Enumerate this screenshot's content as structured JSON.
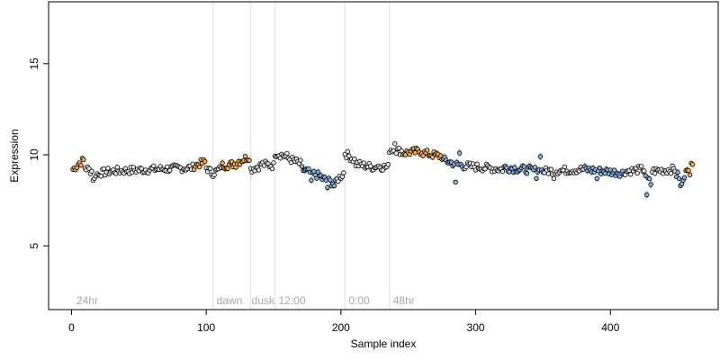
{
  "chart_data": {
    "type": "scatter",
    "xlabel": "Sample index",
    "ylabel": "Expression",
    "xlim": [
      -17,
      480
    ],
    "ylim": [
      1.5,
      18.4
    ],
    "x_ticks": [
      0,
      100,
      200,
      300,
      400
    ],
    "y_ticks": [
      5,
      10,
      15
    ],
    "grid": false,
    "legend": "none",
    "colors": {
      "point_stroke": "#000000",
      "point_fill": "#e8e8e8",
      "orange": "#f5b25a",
      "blue": "#8cb4e2",
      "region_line": "#dedede",
      "region_text": "#a8a8a8"
    },
    "region_lines": [
      105,
      133,
      151,
      203,
      236
    ],
    "region_labels": [
      {
        "text": "24hr",
        "x": 3
      },
      {
        "text": "dawn",
        "x": 107
      },
      {
        "text": "dusk",
        "x": 133
      },
      {
        "text": "12:00",
        "x": 153
      },
      {
        "text": "0:00",
        "x": 205
      },
      {
        "text": "48hr",
        "x": 238
      }
    ],
    "n_points": 461,
    "segments": [
      {
        "start": 1,
        "end": 4,
        "from": 9.2,
        "to": 9.4,
        "color": "orange"
      },
      {
        "start": 5,
        "end": 9,
        "from": 9.5,
        "to": 9.7,
        "color": "orange"
      },
      {
        "start": 10,
        "end": 20,
        "from": 9.3,
        "to": 8.9
      },
      {
        "start": 21,
        "end": 30,
        "from": 9.0,
        "to": 9.1
      },
      {
        "start": 31,
        "end": 60,
        "from": 9.1,
        "to": 9.2
      },
      {
        "start": 61,
        "end": 90,
        "from": 9.2,
        "to": 9.3
      },
      {
        "start": 91,
        "end": 99,
        "from": 9.4,
        "to": 9.6,
        "color": "orange"
      },
      {
        "start": 100,
        "end": 104,
        "from": 9.3,
        "to": 9.0
      },
      {
        "start": 105,
        "end": 110,
        "from": 9.0,
        "to": 9.2
      },
      {
        "start": 111,
        "end": 122,
        "from": 9.4,
        "to": 9.5,
        "color": "orange"
      },
      {
        "start": 123,
        "end": 132,
        "from": 9.6,
        "to": 9.9,
        "color": "orange"
      },
      {
        "start": 133,
        "end": 140,
        "from": 9.2,
        "to": 9.4
      },
      {
        "start": 141,
        "end": 150,
        "from": 9.5,
        "to": 9.4
      },
      {
        "start": 151,
        "end": 160,
        "from": 10.1,
        "to": 9.9
      },
      {
        "start": 161,
        "end": 170,
        "from": 9.8,
        "to": 9.5
      },
      {
        "start": 171,
        "end": 185,
        "from": 9.2,
        "to": 8.8,
        "color": "blue"
      },
      {
        "start": 186,
        "end": 196,
        "from": 8.7,
        "to": 8.4,
        "color": "blue"
      },
      {
        "start": 197,
        "end": 202,
        "from": 8.6,
        "to": 9.0
      },
      {
        "start": 203,
        "end": 210,
        "from": 10.1,
        "to": 9.7
      },
      {
        "start": 211,
        "end": 225,
        "from": 9.5,
        "to": 9.3
      },
      {
        "start": 226,
        "end": 235,
        "from": 9.4,
        "to": 9.3
      },
      {
        "start": 236,
        "end": 245,
        "from": 10.3,
        "to": 10.2
      },
      {
        "start": 246,
        "end": 260,
        "from": 10.1,
        "to": 10.2,
        "color": "orange"
      },
      {
        "start": 261,
        "end": 275,
        "from": 10.1,
        "to": 9.9,
        "color": "orange"
      },
      {
        "start": 276,
        "end": 290,
        "from": 9.7,
        "to": 9.4,
        "color": "blue"
      },
      {
        "start": 291,
        "end": 320,
        "from": 9.4,
        "to": 9.2
      },
      {
        "start": 321,
        "end": 350,
        "from": 9.3,
        "to": 9.1,
        "color": "blue"
      },
      {
        "start": 351,
        "end": 380,
        "from": 9.1,
        "to": 9.2
      },
      {
        "start": 381,
        "end": 410,
        "from": 9.2,
        "to": 9.0,
        "color": "blue"
      },
      {
        "start": 411,
        "end": 425,
        "from": 9.1,
        "to": 9.2
      },
      {
        "start": 426,
        "end": 430,
        "from": 8.9,
        "to": 8.4,
        "color": "blue"
      },
      {
        "start": 431,
        "end": 448,
        "from": 9.1,
        "to": 9.2
      },
      {
        "start": 449,
        "end": 455,
        "from": 8.9,
        "to": 8.6,
        "color": "blue"
      },
      {
        "start": 456,
        "end": 461,
        "from": 9.3,
        "to": 9.4,
        "color": "orange"
      }
    ],
    "outliers": [
      {
        "x": 16,
        "y": 8.6
      },
      {
        "x": 17,
        "y": 8.7
      },
      {
        "x": 178,
        "y": 8.6
      },
      {
        "x": 190,
        "y": 8.2
      },
      {
        "x": 195,
        "y": 8.3
      },
      {
        "x": 240,
        "y": 10.6
      },
      {
        "x": 285,
        "y": 8.5
      },
      {
        "x": 288,
        "y": 10.1
      },
      {
        "x": 345,
        "y": 8.7
      },
      {
        "x": 348,
        "y": 9.9
      },
      {
        "x": 358,
        "y": 8.7
      },
      {
        "x": 390,
        "y": 8.7
      },
      {
        "x": 427,
        "y": 7.8
      },
      {
        "x": 452,
        "y": 8.3
      },
      {
        "x": 453,
        "y": 8.4
      },
      {
        "x": 459,
        "y": 8.9
      }
    ]
  }
}
